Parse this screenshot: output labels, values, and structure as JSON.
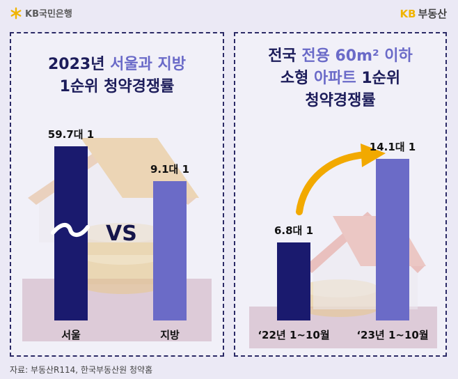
{
  "header": {
    "bank_name": "KB국민은행",
    "estate_kb": "KB",
    "estate_name": "부동산"
  },
  "colors": {
    "navy": "#1a1a6e",
    "purple": "#6b6bc7",
    "arrow": "#f2a900",
    "border": "#2b2a66"
  },
  "icons": [
    "kb-star-icon",
    "house-icon",
    "coin-stack-icon",
    "rising-arrow-icon"
  ],
  "left_panel": {
    "title_line1_plain": "2023년 ",
    "title_line1_accent": "서울과 지방",
    "title_line2": "1순위 청약경쟁률",
    "vs_text": "VS"
  },
  "right_panel": {
    "title_line1_plain": "전국 ",
    "title_line1_accent": "전용 60m² 이하",
    "title_line2_plain": "소형 ",
    "title_line2_accent": "아파트",
    "title_line2_rest": " 1순위",
    "title_line3": "청약경쟁률"
  },
  "chart_data": [
    {
      "type": "bar",
      "title": "2023년 서울과 지방 1순위 청약경쟁률",
      "categories": [
        "서울",
        "지방"
      ],
      "values": [
        59.7,
        9.1
      ],
      "value_labels": [
        "59.7대 1",
        "9.1대 1"
      ],
      "axis_break": true
    },
    {
      "type": "bar",
      "title": "전국 전용 60m² 이하 소형 아파트 1순위 청약경쟁률",
      "categories": [
        "‘22년 1~10월",
        "‘23년 1~10월"
      ],
      "values": [
        6.8,
        14.1
      ],
      "value_labels": [
        "6.8대 1",
        "14.1대 1"
      ],
      "ylim": [
        0,
        14.1
      ]
    }
  ],
  "source": "자료: 부동산R114, 한국부동산원 청약홈"
}
